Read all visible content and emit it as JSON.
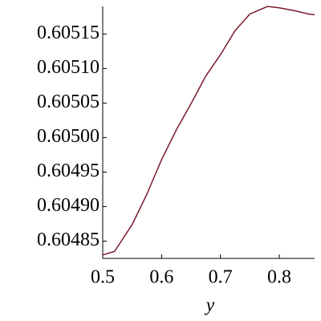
{
  "chart_data": {
    "type": "line",
    "x_label": "y",
    "x": [
      0.5,
      0.52,
      0.55,
      0.575,
      0.6,
      0.625,
      0.65,
      0.675,
      0.7,
      0.725,
      0.75,
      0.78,
      0.8,
      0.825,
      0.85,
      0.86
    ],
    "series": [
      {
        "color": "#7b1a2c",
        "values": [
          0.60483,
          0.604835,
          0.604874,
          0.604918,
          0.604968,
          0.605011,
          0.605049,
          0.605089,
          0.60512,
          0.605155,
          0.605179,
          0.60519,
          0.605188,
          0.605184,
          0.605179,
          0.605178
        ]
      }
    ],
    "xlim": [
      0.5,
      0.86
    ],
    "ylim": [
      0.604825,
      0.60519
    ],
    "xticks": [
      0.5,
      0.6,
      0.7,
      0.8
    ],
    "yticks": [
      0.60485,
      {
        "value": 0.6049,
        "label": "0.60490"
      },
      0.60495,
      {
        "value": 0.605,
        "label": "0.60500"
      },
      0.60505,
      {
        "value": 0.6051,
        "label": "0.60510"
      },
      0.60515
    ]
  }
}
